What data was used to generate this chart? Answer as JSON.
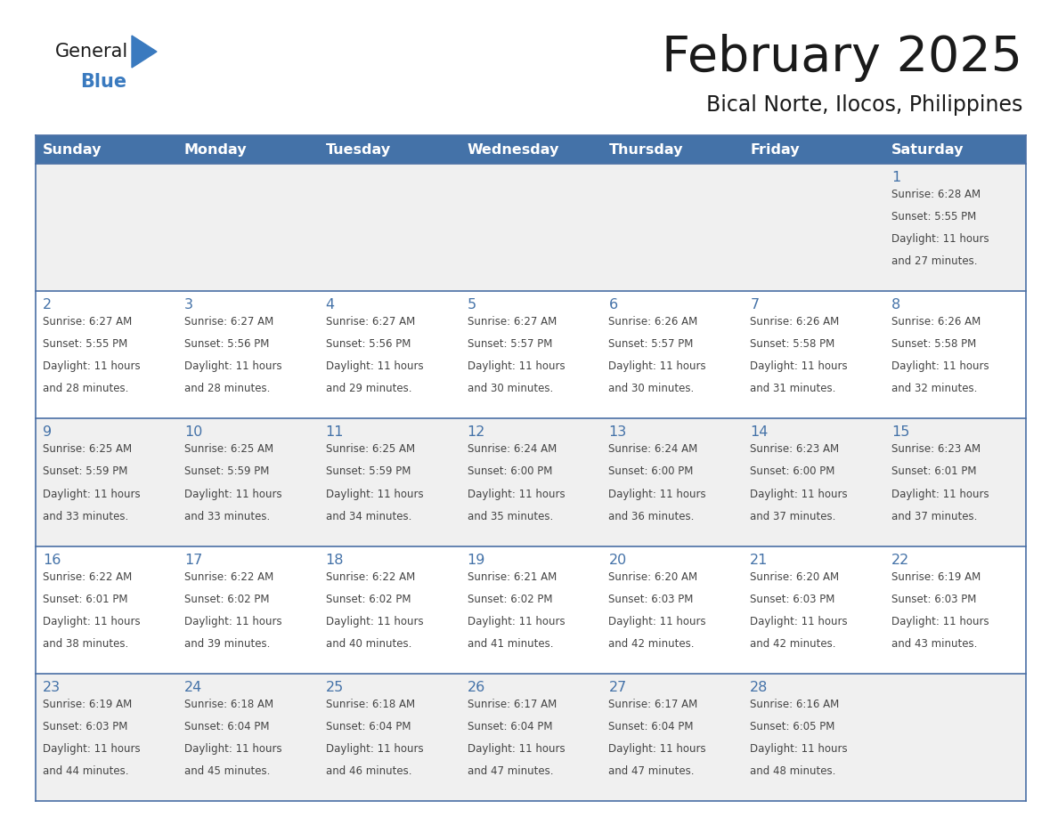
{
  "title": "February 2025",
  "subtitle": "Bical Norte, Ilocos, Philippines",
  "header_bg": "#4472a8",
  "header_text": "#ffffff",
  "row_bg_light": "#f0f0f0",
  "row_bg_white": "#ffffff",
  "cell_border_color": "#4a6fa5",
  "day_number_color": "#4472a8",
  "info_text_color": "#444444",
  "logo_text_color": "#1a1a1a",
  "logo_blue_color": "#3a7abf",
  "title_color": "#1a1a1a",
  "subtitle_color": "#1a1a1a",
  "day_headers": [
    "Sunday",
    "Monday",
    "Tuesday",
    "Wednesday",
    "Thursday",
    "Friday",
    "Saturday"
  ],
  "calendar_data": [
    [
      null,
      null,
      null,
      null,
      null,
      null,
      1
    ],
    [
      2,
      3,
      4,
      5,
      6,
      7,
      8
    ],
    [
      9,
      10,
      11,
      12,
      13,
      14,
      15
    ],
    [
      16,
      17,
      18,
      19,
      20,
      21,
      22
    ],
    [
      23,
      24,
      25,
      26,
      27,
      28,
      null
    ]
  ],
  "sun_info": {
    "1": {
      "sunrise": "6:28 AM",
      "sunset": "5:55 PM",
      "daylight": "11 hours and 27 minutes."
    },
    "2": {
      "sunrise": "6:27 AM",
      "sunset": "5:55 PM",
      "daylight": "11 hours and 28 minutes."
    },
    "3": {
      "sunrise": "6:27 AM",
      "sunset": "5:56 PM",
      "daylight": "11 hours and 28 minutes."
    },
    "4": {
      "sunrise": "6:27 AM",
      "sunset": "5:56 PM",
      "daylight": "11 hours and 29 minutes."
    },
    "5": {
      "sunrise": "6:27 AM",
      "sunset": "5:57 PM",
      "daylight": "11 hours and 30 minutes."
    },
    "6": {
      "sunrise": "6:26 AM",
      "sunset": "5:57 PM",
      "daylight": "11 hours and 30 minutes."
    },
    "7": {
      "sunrise": "6:26 AM",
      "sunset": "5:58 PM",
      "daylight": "11 hours and 31 minutes."
    },
    "8": {
      "sunrise": "6:26 AM",
      "sunset": "5:58 PM",
      "daylight": "11 hours and 32 minutes."
    },
    "9": {
      "sunrise": "6:25 AM",
      "sunset": "5:59 PM",
      "daylight": "11 hours and 33 minutes."
    },
    "10": {
      "sunrise": "6:25 AM",
      "sunset": "5:59 PM",
      "daylight": "11 hours and 33 minutes."
    },
    "11": {
      "sunrise": "6:25 AM",
      "sunset": "5:59 PM",
      "daylight": "11 hours and 34 minutes."
    },
    "12": {
      "sunrise": "6:24 AM",
      "sunset": "6:00 PM",
      "daylight": "11 hours and 35 minutes."
    },
    "13": {
      "sunrise": "6:24 AM",
      "sunset": "6:00 PM",
      "daylight": "11 hours and 36 minutes."
    },
    "14": {
      "sunrise": "6:23 AM",
      "sunset": "6:00 PM",
      "daylight": "11 hours and 37 minutes."
    },
    "15": {
      "sunrise": "6:23 AM",
      "sunset": "6:01 PM",
      "daylight": "11 hours and 37 minutes."
    },
    "16": {
      "sunrise": "6:22 AM",
      "sunset": "6:01 PM",
      "daylight": "11 hours and 38 minutes."
    },
    "17": {
      "sunrise": "6:22 AM",
      "sunset": "6:02 PM",
      "daylight": "11 hours and 39 minutes."
    },
    "18": {
      "sunrise": "6:22 AM",
      "sunset": "6:02 PM",
      "daylight": "11 hours and 40 minutes."
    },
    "19": {
      "sunrise": "6:21 AM",
      "sunset": "6:02 PM",
      "daylight": "11 hours and 41 minutes."
    },
    "20": {
      "sunrise": "6:20 AM",
      "sunset": "6:03 PM",
      "daylight": "11 hours and 42 minutes."
    },
    "21": {
      "sunrise": "6:20 AM",
      "sunset": "6:03 PM",
      "daylight": "11 hours and 42 minutes."
    },
    "22": {
      "sunrise": "6:19 AM",
      "sunset": "6:03 PM",
      "daylight": "11 hours and 43 minutes."
    },
    "23": {
      "sunrise": "6:19 AM",
      "sunset": "6:03 PM",
      "daylight": "11 hours and 44 minutes."
    },
    "24": {
      "sunrise": "6:18 AM",
      "sunset": "6:04 PM",
      "daylight": "11 hours and 45 minutes."
    },
    "25": {
      "sunrise": "6:18 AM",
      "sunset": "6:04 PM",
      "daylight": "11 hours and 46 minutes."
    },
    "26": {
      "sunrise": "6:17 AM",
      "sunset": "6:04 PM",
      "daylight": "11 hours and 47 minutes."
    },
    "27": {
      "sunrise": "6:17 AM",
      "sunset": "6:04 PM",
      "daylight": "11 hours and 47 minutes."
    },
    "28": {
      "sunrise": "6:16 AM",
      "sunset": "6:05 PM",
      "daylight": "11 hours and 48 minutes."
    }
  }
}
